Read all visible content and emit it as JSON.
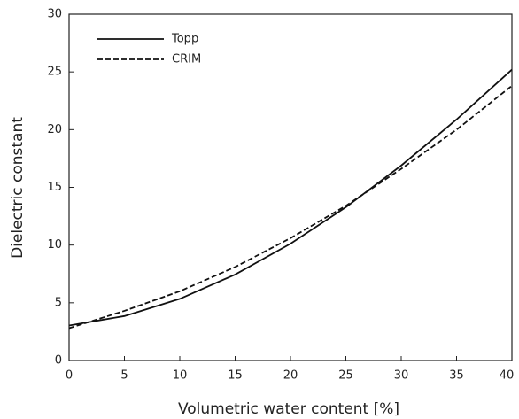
{
  "chart_data": {
    "type": "line",
    "xlabel": "Volumetric water content [%]",
    "ylabel": "Dielectric constant",
    "x": [
      0,
      5,
      10,
      15,
      20,
      25,
      30,
      35,
      40
    ],
    "series": [
      {
        "name": "Topp",
        "color": "#111111",
        "dash": "solid",
        "values": [
          3.03,
          3.85,
          5.34,
          7.45,
          10.12,
          13.28,
          16.89,
          20.88,
          25.2
        ]
      },
      {
        "name": "CRIM",
        "color": "#111111",
        "dash": "dashed",
        "values": [
          2.8,
          4.3,
          6.0,
          8.1,
          10.6,
          13.4,
          16.6,
          20.0,
          23.8
        ]
      }
    ],
    "xlim": [
      0,
      40
    ],
    "xticks": [
      0,
      5,
      10,
      15,
      20,
      25,
      30,
      35,
      40
    ],
    "ylim": [
      0,
      30
    ],
    "yticks": [
      0,
      5,
      10,
      15,
      20,
      25,
      30
    ],
    "grid": false,
    "legend": "upper left"
  }
}
